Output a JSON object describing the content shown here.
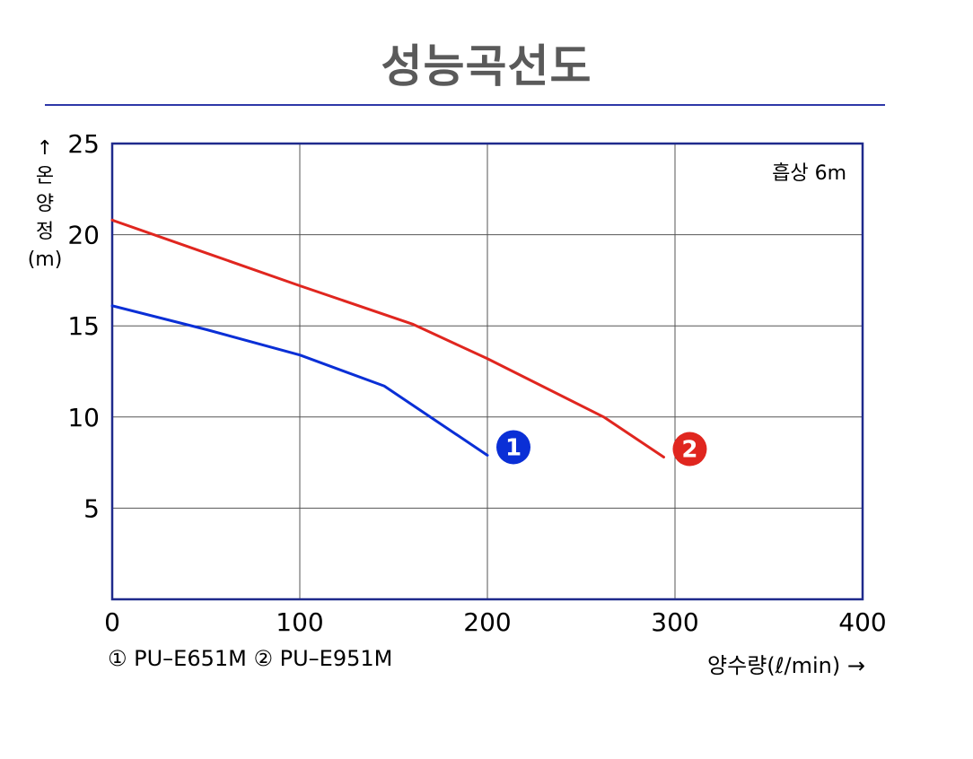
{
  "title": "성능곡선도",
  "legend_text": "① PU–E651M  ② PU–E951M",
  "chart_data": {
    "type": "line",
    "xlabel": "양수량(ℓ/min) →",
    "ylabel_chars": [
      "↑",
      "온",
      "양",
      "정",
      "(m)"
    ],
    "annotation": "흡상 6m",
    "xlim": [
      0,
      400
    ],
    "ylim": [
      0,
      25
    ],
    "xticks": [
      0,
      100,
      200,
      300,
      400
    ],
    "yticks": [
      5,
      10,
      15,
      20,
      25
    ],
    "grid": true,
    "series": [
      {
        "name": "PU–E651M",
        "marker_label": "1",
        "color": "#0a2fd6",
        "x": [
          0,
          50,
          100,
          145,
          200
        ],
        "y": [
          16.1,
          14.8,
          13.4,
          11.7,
          7.9
        ]
      },
      {
        "name": "PU–E951M",
        "marker_label": "2",
        "color": "#e0261f",
        "x": [
          0,
          50,
          100,
          160,
          200,
          262,
          294
        ],
        "y": [
          20.8,
          19.0,
          17.2,
          15.1,
          13.2,
          10.0,
          7.8
        ]
      }
    ],
    "colors": {
      "frame": "#1f2a8c",
      "grid": "#555555"
    }
  }
}
